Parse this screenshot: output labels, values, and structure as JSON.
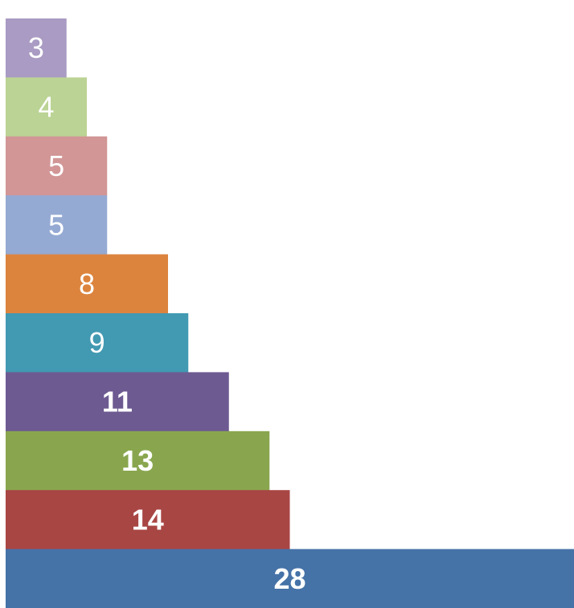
{
  "chart_data": {
    "type": "bar",
    "orientation": "horizontal",
    "categories": [
      "",
      "",
      "",
      "",
      "",
      "",
      "",
      "",
      "",
      ""
    ],
    "values": [
      3,
      4,
      5,
      5,
      8,
      9,
      11,
      13,
      14,
      28
    ],
    "labels": [
      "3",
      "4",
      "5",
      "5",
      "8",
      "9",
      "11",
      "13",
      "14",
      "28"
    ],
    "bold_labels": [
      false,
      false,
      false,
      false,
      false,
      false,
      true,
      true,
      true,
      true
    ],
    "colors": [
      "#A99BC3",
      "#BBD394",
      "#D29696",
      "#95AAD3",
      "#DC843E",
      "#4299B2",
      "#6D5A91",
      "#89A64E",
      "#A84644",
      "#4572A7"
    ],
    "xlim": [
      0,
      28
    ],
    "grid": false,
    "legend": "none",
    "title": "",
    "xlabel": "",
    "ylabel": ""
  }
}
